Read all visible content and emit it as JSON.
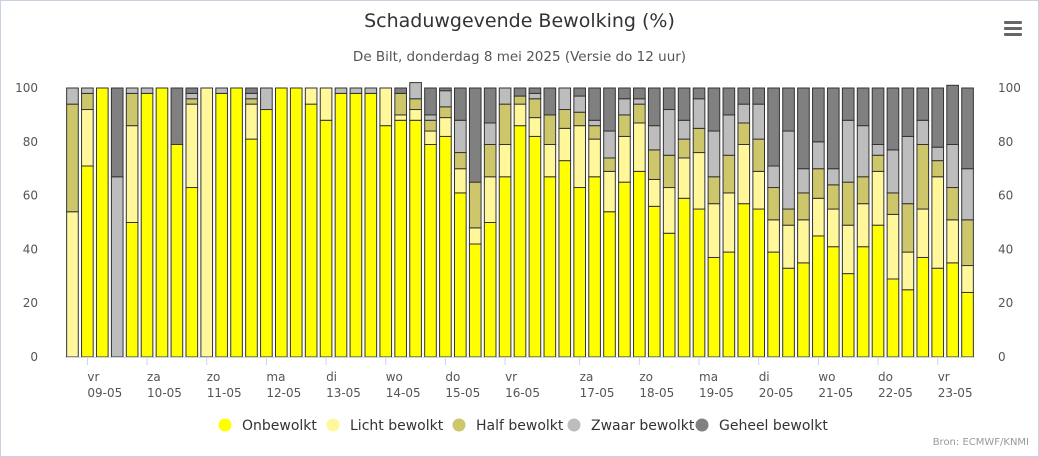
{
  "title": "Schaduwgevende Bewolking (%)",
  "subtitle": "De Bilt, donderdag 8 mei 2025 (Versie do 12 uur)",
  "credits": "Bron: ECMWF/KNMI",
  "menu_icon": "hamburger-menu-icon",
  "chart_data": {
    "type": "bar",
    "stacked": true,
    "ylim": [
      0,
      100
    ],
    "yticks": [
      0,
      20,
      40,
      60,
      80,
      100
    ],
    "grid": false,
    "legend_position": "bottom",
    "day_labels": [
      {
        "weekday": "vr",
        "date": "09-05"
      },
      {
        "weekday": "za",
        "date": "10-05"
      },
      {
        "weekday": "zo",
        "date": "11-05"
      },
      {
        "weekday": "ma",
        "date": "12-05"
      },
      {
        "weekday": "di",
        "date": "13-05"
      },
      {
        "weekday": "wo",
        "date": "14-05"
      },
      {
        "weekday": "do",
        "date": "15-05"
      },
      {
        "weekday": "vr",
        "date": "16-05"
      },
      {
        "weekday": "za",
        "date": "17-05"
      },
      {
        "weekday": "zo",
        "date": "18-05"
      },
      {
        "weekday": "ma",
        "date": "19-05"
      },
      {
        "weekday": "di",
        "date": "20-05"
      },
      {
        "weekday": "wo",
        "date": "21-05"
      },
      {
        "weekday": "do",
        "date": "22-05"
      },
      {
        "weekday": "vr",
        "date": "23-05"
      }
    ],
    "series": [
      {
        "name": "Onbewolkt",
        "color": "#ffff00",
        "values": [
          0,
          71,
          100,
          0,
          50,
          98,
          100,
          79,
          63,
          0,
          98,
          100,
          81,
          92,
          100,
          100,
          94,
          88,
          98,
          98,
          98,
          86,
          88,
          88,
          79,
          82,
          61,
          42,
          50,
          67,
          86,
          82,
          67,
          73,
          63,
          67,
          54,
          65,
          69,
          56,
          46,
          59,
          55,
          37,
          39,
          57,
          55,
          39,
          33,
          35,
          45,
          41,
          31,
          41,
          49,
          29,
          25,
          37,
          33,
          35,
          24
        ]
      },
      {
        "name": "Licht bewolkt",
        "color": "#fff799",
        "values": [
          54,
          21,
          0,
          0,
          36,
          0,
          0,
          0,
          31,
          100,
          0,
          0,
          13,
          0,
          0,
          0,
          6,
          12,
          0,
          0,
          0,
          14,
          2,
          4,
          5,
          7,
          9,
          6,
          17,
          12,
          8,
          7,
          12,
          12,
          23,
          14,
          15,
          17,
          18,
          10,
          17,
          15,
          21,
          20,
          22,
          22,
          14,
          12,
          16,
          16,
          14,
          14,
          18,
          16,
          20,
          24,
          14,
          18,
          34,
          16,
          10
        ]
      },
      {
        "name": "Half bewolkt",
        "color": "#cdc66b",
        "values": [
          40,
          6,
          0,
          0,
          12,
          0,
          0,
          0,
          2,
          0,
          0,
          0,
          2,
          0,
          0,
          0,
          0,
          0,
          0,
          0,
          0,
          0,
          8,
          4,
          4,
          4,
          6,
          17,
          12,
          15,
          3,
          7,
          11,
          7,
          5,
          5,
          5,
          8,
          7,
          11,
          12,
          7,
          9,
          10,
          14,
          8,
          12,
          12,
          6,
          10,
          11,
          9,
          16,
          10,
          6,
          8,
          18,
          24,
          6,
          12,
          17
        ]
      },
      {
        "name": "Zwaar bewolkt",
        "color": "#bdbdbd",
        "values": [
          6,
          2,
          0,
          67,
          2,
          2,
          0,
          0,
          2,
          0,
          2,
          0,
          2,
          8,
          0,
          0,
          0,
          0,
          2,
          2,
          2,
          0,
          0,
          6,
          2,
          6,
          12,
          0,
          8,
          6,
          0,
          2,
          0,
          8,
          6,
          2,
          10,
          6,
          2,
          9,
          17,
          7,
          11,
          17,
          15,
          7,
          13,
          8,
          29,
          9,
          10,
          6,
          23,
          19,
          4,
          16,
          25,
          9,
          5,
          16,
          19
        ]
      },
      {
        "name": "Geheel bewolkt",
        "color": "#808080",
        "values": [
          0,
          0,
          0,
          33,
          0,
          0,
          0,
          21,
          2,
          0,
          0,
          0,
          2,
          0,
          0,
          0,
          0,
          0,
          0,
          0,
          0,
          0,
          2,
          0,
          10,
          1,
          12,
          35,
          13,
          0,
          3,
          2,
          10,
          0,
          3,
          12,
          16,
          4,
          4,
          14,
          8,
          12,
          4,
          16,
          10,
          6,
          6,
          29,
          16,
          30,
          20,
          30,
          12,
          14,
          21,
          23,
          18,
          12,
          22,
          22,
          30
        ]
      }
    ]
  }
}
